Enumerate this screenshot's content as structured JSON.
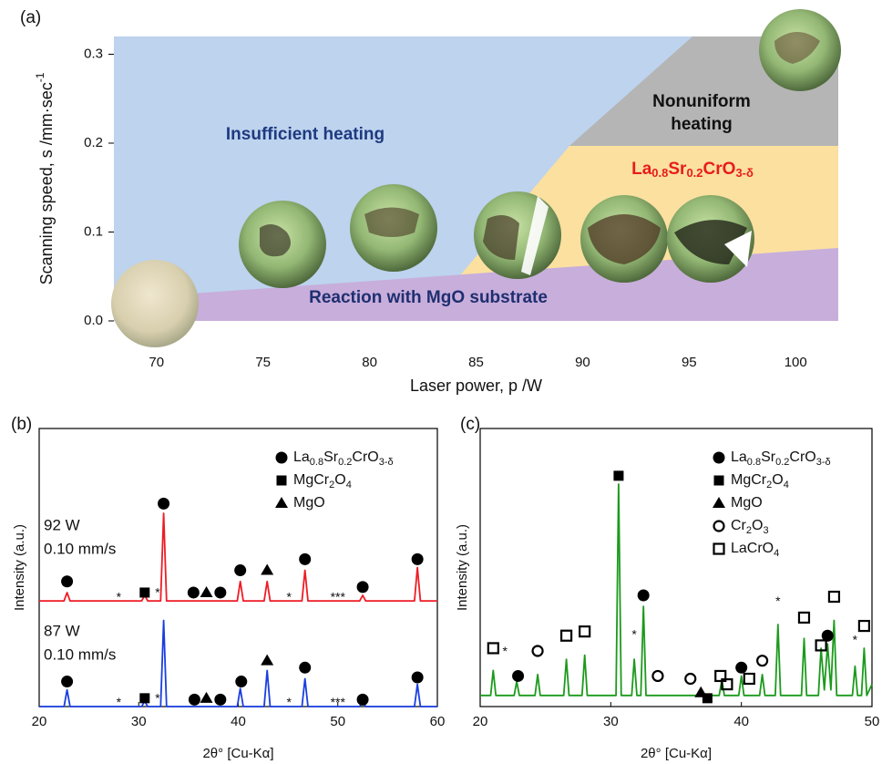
{
  "chart_data": [
    {
      "type": "region_map",
      "panel_label": "(a)",
      "xlabel": "Laser power, p /W",
      "ylabel": "Scanning speed, s /mm·sec-1",
      "xlim": [
        68,
        102
      ],
      "ylim": [
        0,
        0.32
      ],
      "xticks": [
        70,
        75,
        80,
        85,
        90,
        95,
        100
      ],
      "yticks": [
        {
          "value": 0,
          "label": "0.0"
        },
        0.1,
        0.2,
        0.3
      ],
      "regions": [
        {
          "name": "Insufficient heating",
          "color": "#bdd3ee",
          "text_color": "#1f3a80"
        },
        {
          "name": "Nonuniform heating",
          "color": "#b5b5b5",
          "text_color": "#111111"
        },
        {
          "name": "La0.8Sr0.2CrO3-δ",
          "color": "#fbe0a0",
          "text_color": "#e81c1c"
        },
        {
          "name": "Reaction with MgO substrate",
          "color": "#c8aedb",
          "text_color": "#1f2f70"
        }
      ]
    },
    {
      "type": "line",
      "panel_label": "(b)",
      "xlabel": "2θ° [Cu-Kα]",
      "ylabel": "Intensity (a.u.)",
      "xlim": [
        20,
        60
      ],
      "ylim": [
        0,
        100
      ],
      "xticks": [
        20,
        30,
        40,
        50,
        60
      ],
      "x": [
        20,
        22.5,
        22.8,
        23.1,
        30.3,
        30.6,
        30.9,
        32.2,
        32.5,
        32.8,
        39.9,
        40.2,
        40.5,
        42.6,
        42.9,
        43.2,
        46.4,
        46.7,
        47.0,
        52.2,
        52.5,
        52.8,
        57.7,
        58.0,
        58.3,
        60
      ],
      "series": [
        {
          "color": "#ee1c25",
          "labels": [
            "92 W",
            "0.10 mm/s"
          ],
          "values": [
            38,
            38,
            41,
            38,
            38,
            40,
            38,
            38,
            69.5,
            38,
            38,
            45,
            38,
            38,
            45,
            38,
            38,
            49,
            38,
            38,
            40,
            38,
            38,
            50,
            38,
            38
          ]
        },
        {
          "color": "#1a3fe0",
          "labels": [
            "87 W",
            "0.10 mm/s"
          ],
          "values": [
            0,
            0,
            6,
            0,
            0,
            2,
            0,
            0,
            31,
            0,
            0,
            6.5,
            0,
            0,
            13,
            0,
            0,
            10,
            0,
            0,
            2,
            0,
            0,
            8,
            0,
            0
          ]
        }
      ],
      "legend": [
        {
          "shape": "filled-circle",
          "label": "La0.8Sr0.2CrO3-δ"
        },
        {
          "shape": "filled-square",
          "label": "MgCr2O4"
        },
        {
          "shape": "filled-triangle",
          "label": "MgO"
        }
      ],
      "markers": [
        {
          "x": 22.8,
          "y": 45,
          "shape": "filled-circle"
        },
        {
          "x": 30.6,
          "y": 41,
          "shape": "filled-square"
        },
        {
          "x": 32.5,
          "y": 73,
          "shape": "filled-circle"
        },
        {
          "x": 35.5,
          "y": 41,
          "shape": "filled-circle"
        },
        {
          "x": 36.8,
          "y": 41,
          "shape": "filled-triangle"
        },
        {
          "x": 38.2,
          "y": 41,
          "shape": "filled-circle"
        },
        {
          "x": 40.2,
          "y": 49,
          "shape": "filled-circle"
        },
        {
          "x": 42.9,
          "y": 49,
          "shape": "filled-triangle"
        },
        {
          "x": 46.7,
          "y": 53,
          "shape": "filled-circle"
        },
        {
          "x": 52.5,
          "y": 43,
          "shape": "filled-circle"
        },
        {
          "x": 58,
          "y": 53,
          "shape": "filled-circle"
        },
        {
          "x": 22.8,
          "y": 9,
          "shape": "filled-circle"
        },
        {
          "x": 30.6,
          "y": 3,
          "shape": "filled-square"
        },
        {
          "x": 35.6,
          "y": 2.5,
          "shape": "filled-circle"
        },
        {
          "x": 36.8,
          "y": 3,
          "shape": "filled-triangle"
        },
        {
          "x": 38.2,
          "y": 2.5,
          "shape": "filled-circle"
        },
        {
          "x": 40.3,
          "y": 9,
          "shape": "filled-circle"
        },
        {
          "x": 42.9,
          "y": 16.5,
          "shape": "filled-triangle"
        },
        {
          "x": 46.7,
          "y": 14,
          "shape": "filled-circle"
        },
        {
          "x": 52.5,
          "y": 2.5,
          "shape": "filled-circle"
        },
        {
          "x": 58,
          "y": 10.5,
          "shape": "filled-circle"
        }
      ],
      "star_labels": [
        {
          "x": 28,
          "y": 38.5,
          "text": "*"
        },
        {
          "x": 31.9,
          "y": 40,
          "text": "*"
        },
        {
          "x": 45.1,
          "y": 38.5,
          "text": "*"
        },
        {
          "x": 50,
          "y": 38.5,
          "text": "***"
        },
        {
          "x": 28,
          "y": 0.5,
          "text": "*"
        },
        {
          "x": 31.9,
          "y": 2,
          "text": "*"
        },
        {
          "x": 45.1,
          "y": 0.5,
          "text": "*"
        },
        {
          "x": 50,
          "y": 0.5,
          "text": "***"
        }
      ]
    },
    {
      "type": "line",
      "panel_label": "(c)",
      "xlabel": "2θ° [Cu-Kα]",
      "ylabel": "Intensity (a.u.)",
      "xlim": [
        20,
        50
      ],
      "ylim": [
        0,
        100
      ],
      "xticks": [
        20,
        30,
        40,
        50
      ],
      "x": [
        20,
        20.8,
        21,
        21.2,
        22.6,
        22.8,
        23.0,
        24.2,
        24.4,
        24.6,
        26.4,
        26.6,
        26.8,
        27.8,
        28.0,
        28.2,
        30.4,
        30.6,
        30.8,
        31.6,
        31.8,
        32.0,
        32.3,
        32.5,
        32.7,
        38.3,
        38.5,
        38.7,
        39.8,
        40.0,
        40.2,
        41.4,
        41.6,
        41.8,
        42.6,
        42.8,
        43.0,
        44.6,
        44.8,
        45.0,
        45.9,
        46.1,
        46.35,
        46.6,
        46.85,
        47.1,
        47.3,
        48.5,
        48.7,
        48.9,
        49.2,
        49.4,
        49.6,
        50
      ],
      "series": [
        {
          "color": "#1c9a1c",
          "values": [
            4,
            4,
            13,
            4,
            4,
            9,
            4,
            4,
            11.5,
            4,
            4,
            17,
            4,
            4,
            18.5,
            4,
            4,
            80,
            4,
            4,
            17,
            4,
            4,
            36,
            4,
            4,
            9.5,
            4,
            4,
            11,
            4,
            4,
            11.5,
            4,
            4,
            29.5,
            4,
            4,
            24.5,
            4,
            4,
            21,
            6,
            22.5,
            6,
            31,
            4,
            4,
            14.5,
            4,
            4,
            21,
            4,
            8
          ]
        }
      ],
      "legend": [
        {
          "shape": "filled-circle",
          "label": "La0.8Sr0.2CrO3-δ"
        },
        {
          "shape": "filled-square",
          "label": "MgCr2O4"
        },
        {
          "shape": "filled-triangle",
          "label": "MgO"
        },
        {
          "shape": "open-circle",
          "label": "Cr2O3"
        },
        {
          "shape": "open-square",
          "label": "LaCrO4"
        }
      ],
      "markers": [
        {
          "x": 22.9,
          "y": 11,
          "shape": "filled-circle"
        },
        {
          "x": 32.5,
          "y": 40,
          "shape": "filled-circle"
        },
        {
          "x": 40.0,
          "y": 14,
          "shape": "filled-circle"
        },
        {
          "x": 46.6,
          "y": 25.5,
          "shape": "filled-circle"
        },
        {
          "x": 30.6,
          "y": 83,
          "shape": "filled-square"
        },
        {
          "x": 37.4,
          "y": 3,
          "shape": "filled-square"
        },
        {
          "x": 36.9,
          "y": 5,
          "shape": "filled-triangle"
        },
        {
          "x": 24.4,
          "y": 20,
          "shape": "open-circle"
        },
        {
          "x": 33.6,
          "y": 11,
          "shape": "open-circle"
        },
        {
          "x": 36.1,
          "y": 10,
          "shape": "open-circle"
        },
        {
          "x": 41.6,
          "y": 16.5,
          "shape": "open-circle"
        },
        {
          "x": 21,
          "y": 21,
          "shape": "open-square"
        },
        {
          "x": 26.6,
          "y": 25.5,
          "shape": "open-square"
        },
        {
          "x": 28,
          "y": 27,
          "shape": "open-square"
        },
        {
          "x": 38.4,
          "y": 11,
          "shape": "open-square"
        },
        {
          "x": 38.9,
          "y": 8,
          "shape": "open-square"
        },
        {
          "x": 40.6,
          "y": 10,
          "shape": "open-square"
        },
        {
          "x": 44.8,
          "y": 32,
          "shape": "open-square"
        },
        {
          "x": 46.1,
          "y": 22,
          "shape": "open-square"
        },
        {
          "x": 47.1,
          "y": 39.5,
          "shape": "open-square"
        },
        {
          "x": 49.4,
          "y": 29,
          "shape": "open-square"
        }
      ],
      "star_labels": [
        {
          "x": 21.9,
          "y": 19,
          "text": "*"
        },
        {
          "x": 31.8,
          "y": 25,
          "text": "*"
        },
        {
          "x": 42.8,
          "y": 37,
          "text": "*"
        },
        {
          "x": 48.7,
          "y": 23,
          "text": "*"
        }
      ]
    }
  ]
}
